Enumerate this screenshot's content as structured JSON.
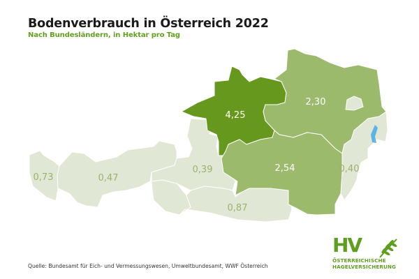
{
  "header": {
    "title": "Bodenverbrauch in Österreich 2022",
    "subtitle": "Nach Bundesländern, in Hektar pro Tag"
  },
  "colors": {
    "high": "#66981e",
    "medium": "#9cba6c",
    "low": "#e0e7d4",
    "label_on_light": "#9cb26c",
    "label_on_dark": "#ffffff",
    "lake": "#5bb4e8",
    "accent": "#62a01e"
  },
  "regions": [
    {
      "id": "vorarlberg",
      "value": "0,73",
      "level": "low"
    },
    {
      "id": "tirol",
      "value": "0,47",
      "level": "low"
    },
    {
      "id": "salzburg",
      "value": "0,39",
      "level": "low"
    },
    {
      "id": "oberoesterreich",
      "value": "4,25",
      "level": "high"
    },
    {
      "id": "niederoesterreich",
      "value": "2,30",
      "level": "medium"
    },
    {
      "id": "steiermark",
      "value": "2,54",
      "level": "medium"
    },
    {
      "id": "burgenland",
      "value": "0,40",
      "level": "low"
    },
    {
      "id": "kaernten",
      "value": "0,87",
      "level": "low"
    }
  ],
  "source": "Quelle: Bundesamt für Eich- und Vermessungswesen, Umweltbundesamt, WWF Österreich",
  "logo": {
    "mark": "HV",
    "line1": "ÖSTERREICHISCHE",
    "line2": "HAGELVERSICHERUNG",
    "icon": "wheat-ear-icon"
  }
}
